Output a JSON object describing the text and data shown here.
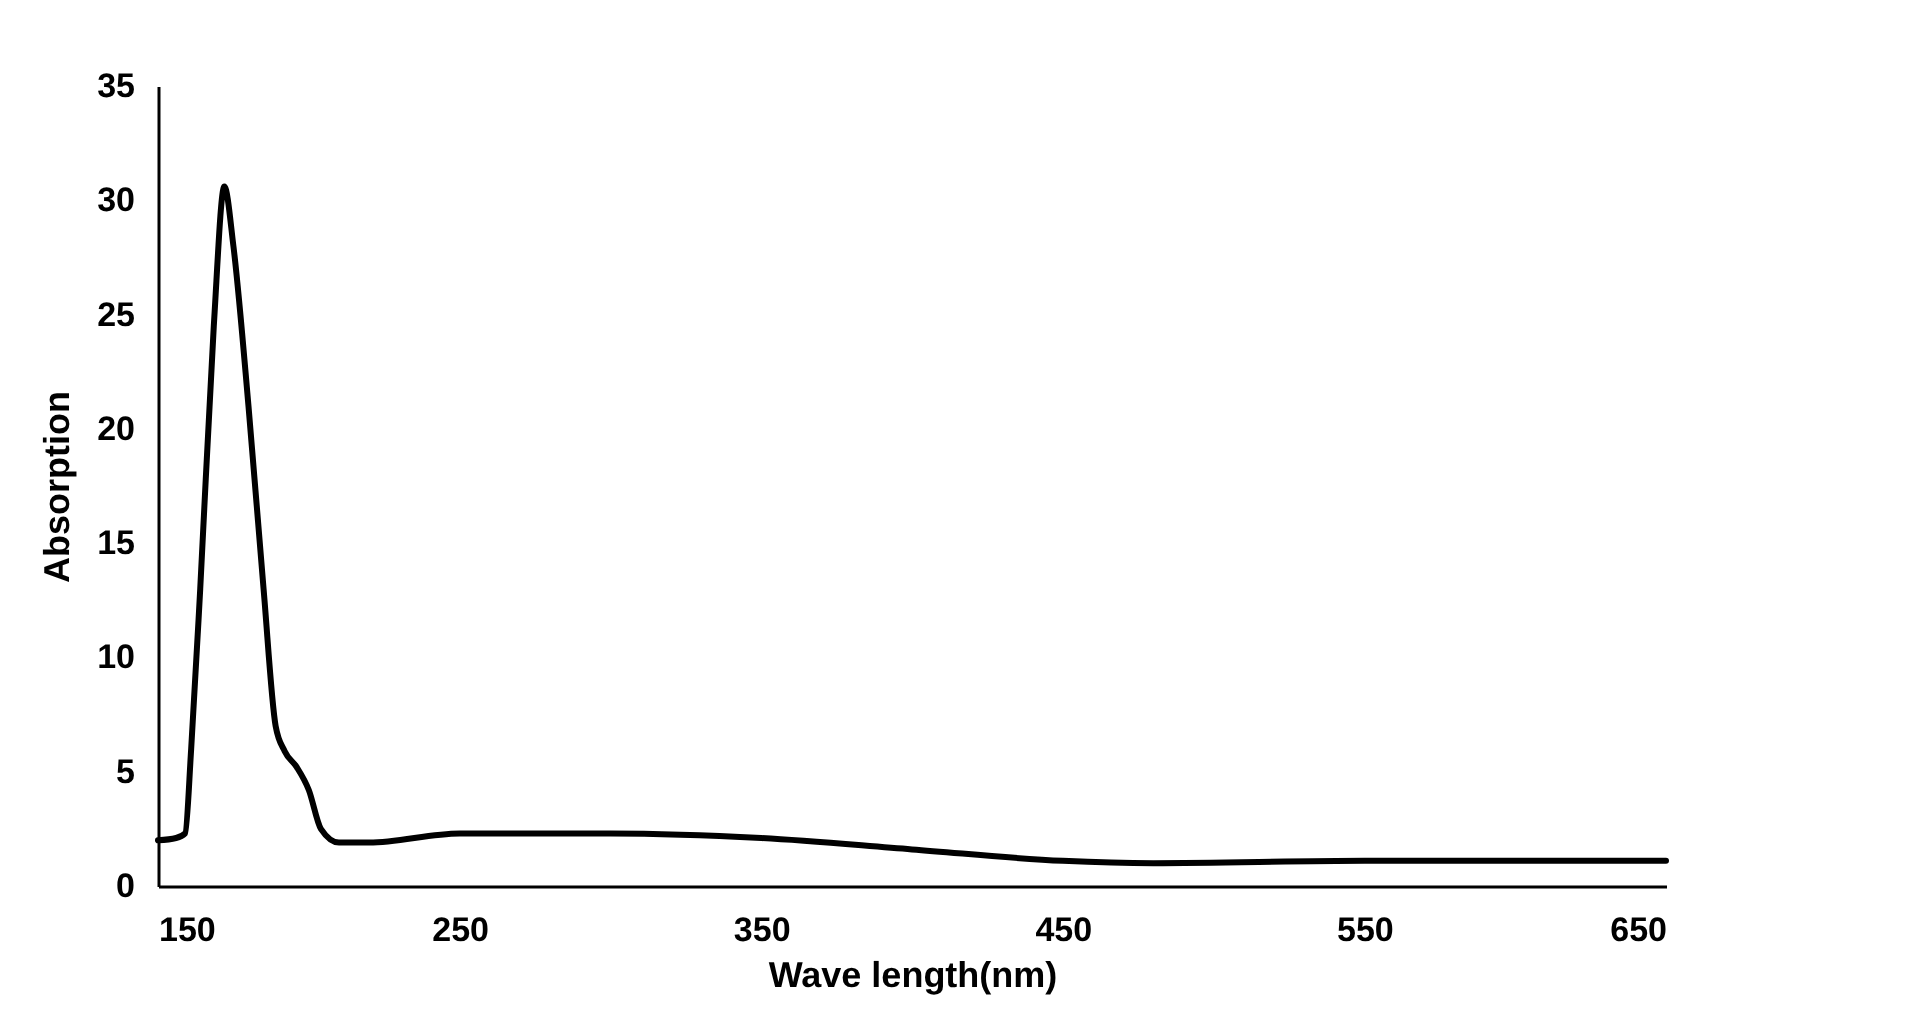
{
  "chart_data": {
    "type": "line",
    "xlabel": "Wave length(nm)",
    "ylabel": "Absorption",
    "x": [
      150,
      156,
      159,
      161,
      164,
      168.5,
      172,
      175,
      180,
      185,
      189,
      192,
      196,
      200,
      204,
      210,
      220,
      250,
      300,
      350,
      400,
      450,
      480,
      550,
      650
    ],
    "series": [
      {
        "color": "#000000",
        "values": [
          2.0,
          2.1,
          2.3,
          6,
          13,
          24.5,
          30.6,
          28,
          21,
          13,
          7,
          5.9,
          5.2,
          4.2,
          2.5,
          1.9,
          1.9,
          2.3,
          2.3,
          2.1,
          1.6,
          1.1,
          1.0,
          1.1,
          1.1
        ]
      }
    ],
    "xlim": [
      150,
      650
    ],
    "xticks": [
      150,
      250,
      350,
      450,
      550,
      650
    ],
    "ylim": [
      0,
      35
    ],
    "yticks": [
      0,
      5,
      10,
      15,
      20,
      25,
      30,
      35
    ],
    "grid": false,
    "line_style": "solid"
  }
}
